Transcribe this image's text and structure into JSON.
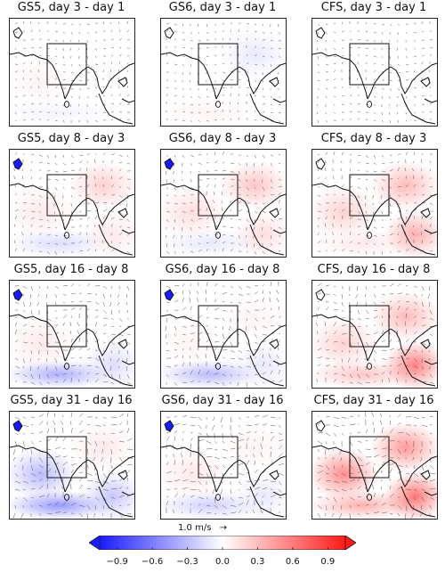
{
  "panels": [
    {
      "title": "GS5, day 3 - day 1",
      "model": "GS5",
      "anomaly": [
        0.05,
        0.0,
        -0.05,
        0.0
      ]
    },
    {
      "title": "GS6, day 3 - day 1",
      "model": "GS6",
      "anomaly": [
        0.0,
        -0.1,
        0.05,
        0.0
      ]
    },
    {
      "title": "CFS, day 3 - day 1",
      "model": "CFS",
      "anomaly": [
        0.0,
        0.0,
        0.0,
        0.0
      ]
    },
    {
      "title": "GS5, day 8 - day 3",
      "model": "GS5",
      "anomaly": [
        0.1,
        0.2,
        -0.15,
        0.1
      ]
    },
    {
      "title": "GS6, day 8 - day 3",
      "model": "GS6",
      "anomaly": [
        0.15,
        0.25,
        -0.1,
        0.15
      ]
    },
    {
      "title": "CFS, day 8 - day 3",
      "model": "CFS",
      "anomaly": [
        0.2,
        0.3,
        0.1,
        0.35
      ]
    },
    {
      "title": "GS5, day 16 - day 8",
      "model": "GS5",
      "anomaly": [
        0.1,
        0.0,
        -0.35,
        -0.15
      ]
    },
    {
      "title": "GS6, day 16 - day 8",
      "model": "GS6",
      "anomaly": [
        0.05,
        0.05,
        -0.3,
        -0.1
      ]
    },
    {
      "title": "CFS, day 16 - day 8",
      "model": "CFS",
      "anomaly": [
        0.2,
        0.3,
        0.25,
        0.55
      ]
    },
    {
      "title": "GS5, day 31 - day 16",
      "model": "GS5",
      "anomaly": [
        -0.3,
        0.1,
        -0.45,
        -0.25
      ]
    },
    {
      "title": "GS6, day 31 - day 16",
      "model": "GS6",
      "anomaly": [
        0.1,
        0.05,
        -0.2,
        -0.1
      ]
    },
    {
      "title": "CFS, day 31 - day 16",
      "model": "CFS",
      "anomaly": [
        0.5,
        0.45,
        0.35,
        0.6
      ]
    }
  ],
  "reference_vector": {
    "label": "1.0 m/s",
    "arrow": "→"
  },
  "colorbar": {
    "min": -1.05,
    "max": 1.05,
    "ticks": [
      -0.9,
      -0.6,
      -0.3,
      0.0,
      0.3,
      0.6,
      0.9
    ],
    "tick_labels": [
      "−0.9",
      "−0.6",
      "−0.3",
      "0.0",
      "0.3",
      "0.6",
      "0.9"
    ],
    "color_low": "#1a1aff",
    "color_mid": "#ffffff",
    "color_high": "#ff1a1a"
  }
}
